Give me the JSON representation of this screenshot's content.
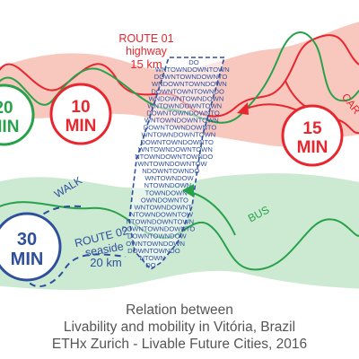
{
  "route01": {
    "name": "ROUTE 01",
    "type": "highway",
    "distance": "15 km"
  },
  "route02": {
    "name": "ROUTE 02",
    "type": "seaside",
    "distance": "20 km"
  },
  "modes": {
    "car": "CAR",
    "walk": "WALK",
    "bus": "BUS"
  },
  "timers": [
    {
      "value": "20",
      "unit": "MIN",
      "mode": "walk-top"
    },
    {
      "value": "10",
      "unit": "MIN",
      "mode": "car-left"
    },
    {
      "value": "15",
      "unit": "MIN",
      "mode": "car-right"
    },
    {
      "value": "30",
      "unit": "MIN",
      "mode": "walk-bottom"
    }
  ],
  "downtown_lines": [
    "DO",
    "WNTOWNDOWNTOWN",
    "DOWNTOWNDOWNTO",
    "WNDOWNTOWNDOWN",
    "DOWNTOWNTOWNDO",
    "WNDOWNTOWNDOWN",
    "WNTOWNDOWNTOWN",
    "DOWNTOWNDOWNTO",
    "WNTOWNDOWNTOWN",
    "DOWNTOWNDOWNTO",
    "WNTOWNDOWNTOWN",
    "DOWNTOWNDOWNTO",
    "WNTOWNDOWNTOWN",
    "NTOWNDOWNTOWNDO",
    "WNTOWNDOWNTOW",
    "NDOWNTOWNDO",
    "WNTOWNDOW",
    "NTOWNDOWN",
    "TOWNDOWN",
    "OWNDOWNTO",
    "WNTOWNDOWNT",
    "NTOWNDOWNTOW",
    "NTOWNDOWNTOWN",
    "DOWNTOWNDOWNTO",
    "DOWNTOWNDOW",
    "OWNTOWNDOWN",
    "DOWNTOWNDO",
    "NTOWN",
    "DO"
  ],
  "caption": {
    "line1": "Relation between",
    "line2": "Livability and mobility in Vitória, Brazil",
    "line3": "ETHx Zurich - Livable Future Cities, 2016"
  },
  "colors": {
    "red": "#e8262e",
    "red_band": "#f6b5a8",
    "green": "#28a24a",
    "green_band": "#bfe3c6",
    "blue": "#2e4f9e",
    "caption": "#555555"
  }
}
